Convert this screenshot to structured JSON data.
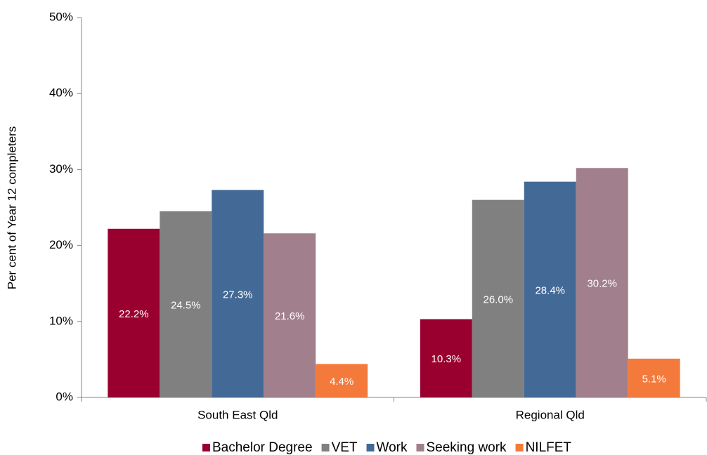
{
  "chart_data": {
    "type": "bar",
    "y_label": "Per cent of Year 12 completers",
    "categories": [
      "South East Qld",
      "Regional Qld"
    ],
    "series": [
      {
        "name": "Bachelor Degree",
        "color": "#99002f",
        "values": [
          22.2,
          10.3
        ],
        "value_labels": [
          "22.2%",
          "10.3%"
        ]
      },
      {
        "name": "VET",
        "color": "#808080",
        "values": [
          24.5,
          26.0
        ],
        "value_labels": [
          "24.5%",
          "26.0%"
        ]
      },
      {
        "name": "Work",
        "color": "#436a96",
        "values": [
          27.3,
          28.4
        ],
        "value_labels": [
          "27.3%",
          "28.4%"
        ]
      },
      {
        "name": "Seeking work",
        "color": "#a17f8d",
        "values": [
          21.6,
          30.2
        ],
        "value_labels": [
          "21.6%",
          "30.2%"
        ]
      },
      {
        "name": "NILFET",
        "color": "#f47a3c",
        "values": [
          4.4,
          5.1
        ],
        "value_labels": [
          "4.4%",
          "5.1%"
        ]
      }
    ],
    "ylim": [
      0,
      50
    ],
    "yticks": [
      {
        "value": 0,
        "label": "0%"
      },
      {
        "value": 10,
        "label": "10%"
      },
      {
        "value": 20,
        "label": "20%"
      },
      {
        "value": 30,
        "label": "30%"
      },
      {
        "value": 40,
        "label": "40%"
      },
      {
        "value": 50,
        "label": "50%"
      }
    ],
    "legend": "bottom"
  }
}
